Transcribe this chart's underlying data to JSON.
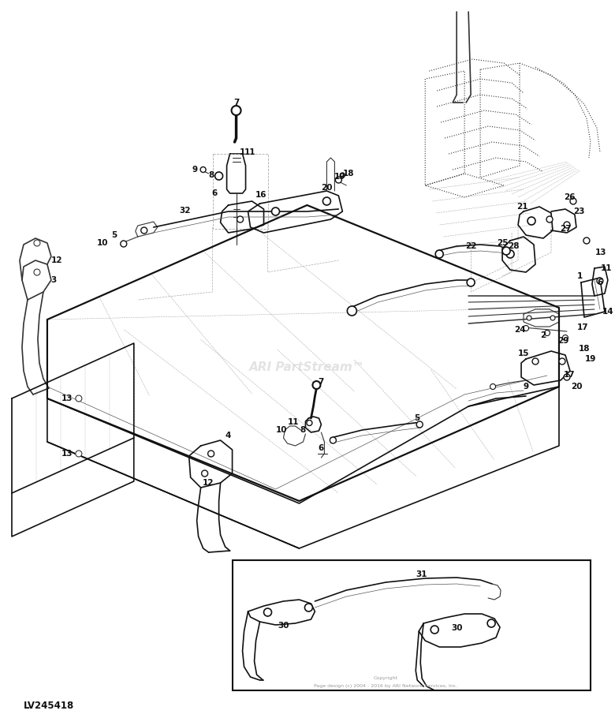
{
  "background_color": "#ffffff",
  "part_number_label": "LV245418",
  "watermark": "ARI PartStream™",
  "copyright_text": "Copyright\nPage design (c) 2004 - 2016 by ARI Network Services, Inc.",
  "fig_width": 7.8,
  "fig_height": 9.1,
  "dpi": 100
}
